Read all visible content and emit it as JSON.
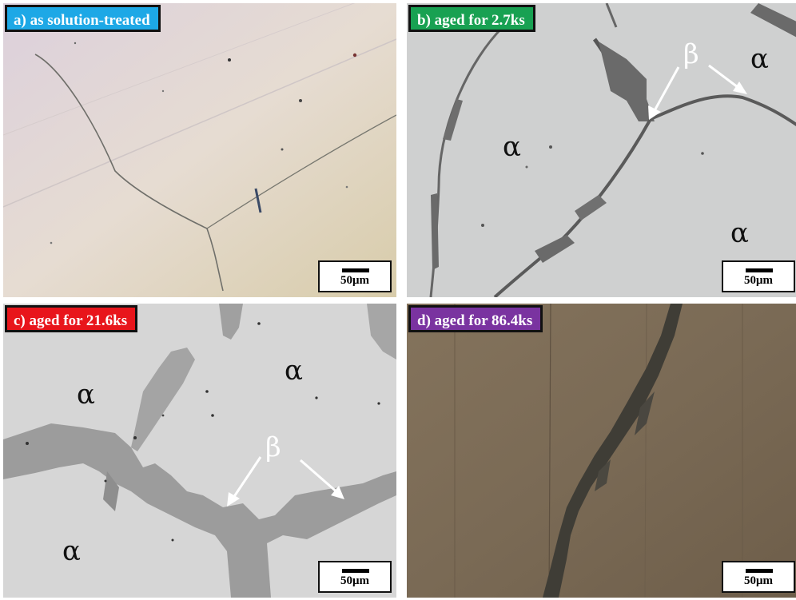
{
  "panels": [
    {
      "id": "a",
      "caption": "a) as solution-treated",
      "caption_color": "#1da8e6",
      "scale": "50μm",
      "labels": []
    },
    {
      "id": "b",
      "caption": "b) aged for 2.7ks",
      "caption_color": "#18a152",
      "scale": "50μm",
      "labels": [
        "β",
        "α",
        "α",
        "α"
      ]
    },
    {
      "id": "c",
      "caption": "c) aged for  21.6ks",
      "caption_color": "#e8151b",
      "scale": "50μm",
      "labels": [
        "β",
        "α",
        "α",
        "α"
      ]
    },
    {
      "id": "d",
      "caption": "d) aged for 86.4ks",
      "caption_color": "#7a33a0",
      "scale": "50μm",
      "labels": []
    }
  ]
}
